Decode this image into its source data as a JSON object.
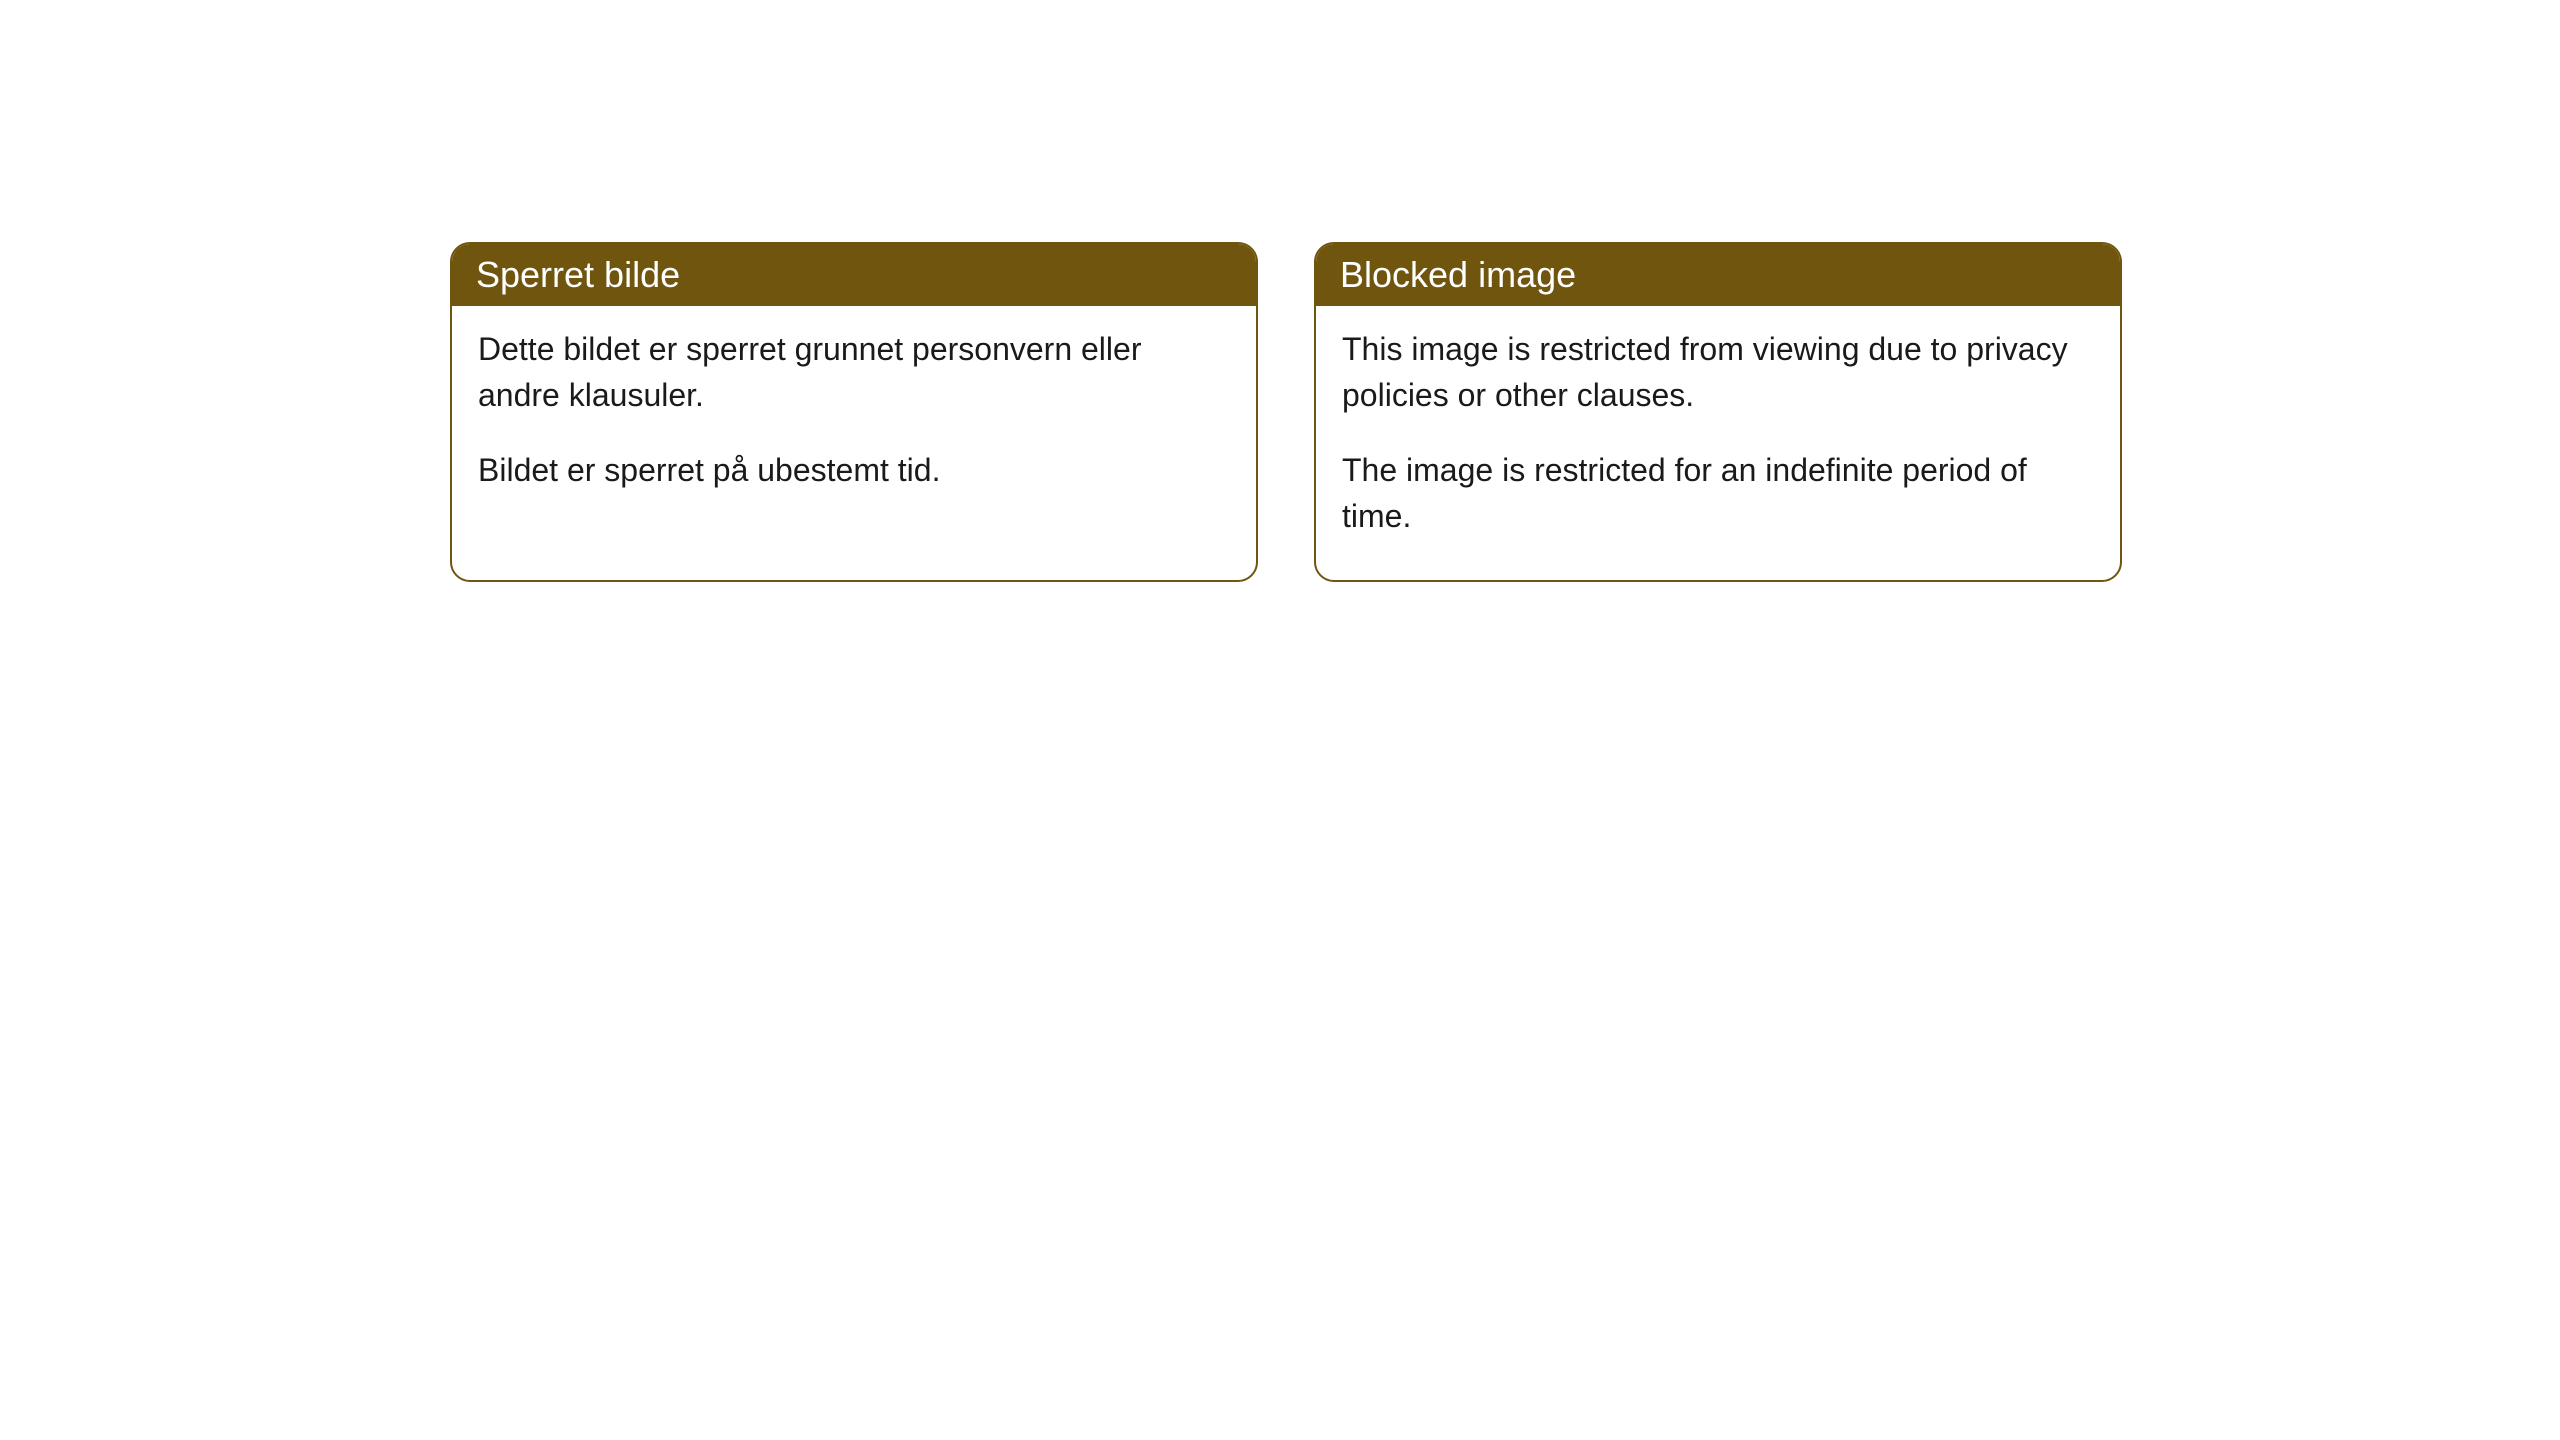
{
  "cards": [
    {
      "title": "Sperret bilde",
      "paragraph1": "Dette bildet er sperret grunnet personvern eller andre klausuler.",
      "paragraph2": "Bildet er sperret på ubestemt tid."
    },
    {
      "title": "Blocked image",
      "paragraph1": "This image is restricted from viewing due to privacy policies or other clauses.",
      "paragraph2": "The image is restricted for an indefinite period of time."
    }
  ],
  "style": {
    "header_bg": "#6f550e",
    "header_text_color": "#ffffff",
    "border_color": "#6f550e",
    "body_bg": "#ffffff",
    "body_text_color": "#1a1a1a",
    "border_radius": 20,
    "title_fontsize": 36,
    "body_fontsize": 32
  }
}
